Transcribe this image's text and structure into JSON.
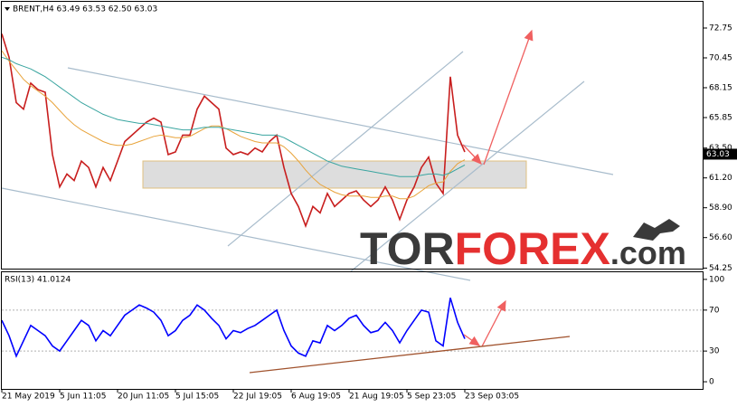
{
  "chart_data": [
    {
      "type": "line",
      "title": "BRENT,H4  63.49 63.53 62.50 63.03",
      "categories": [
        "21 May 2019",
        null,
        null,
        null,
        null,
        null,
        null,
        null,
        "5 Jun 11:05",
        null,
        null,
        null,
        null,
        null,
        null,
        null,
        "20 Jun 11:05",
        null,
        null,
        null,
        null,
        null,
        null,
        null,
        "5 Jul 15:05",
        null,
        null,
        null,
        null,
        null,
        null,
        null,
        "22 Jul 19:05",
        null,
        null,
        null,
        null,
        null,
        null,
        null,
        "6 Aug 19:05",
        null,
        null,
        null,
        null,
        null,
        null,
        null,
        "21 Aug 19:05",
        null,
        null,
        null,
        null,
        null,
        null,
        null,
        "5 Sep 23:05",
        null,
        null,
        null,
        null,
        null,
        null,
        null,
        "23 Sep 03:05"
      ],
      "series": [
        {
          "color": "#c81e1e",
          "values": [
            72.3,
            70.5,
            67,
            66.5,
            68.5,
            68,
            67.8,
            63,
            60.5,
            61.5,
            61,
            62.5,
            62,
            60.5,
            62,
            61,
            62.5,
            64,
            64.5,
            65,
            65.5,
            65.8,
            65.5,
            63,
            63.2,
            64.5,
            64.5,
            66.5,
            67.5,
            67,
            66.5,
            63.5,
            63,
            63.2,
            63,
            63.5,
            63.2,
            64,
            64.5,
            62,
            60,
            59,
            57.5,
            59,
            58.5,
            60,
            59,
            59.5,
            60,
            60.2,
            59.5,
            59,
            59.5,
            60.5,
            59.5,
            58,
            59.5,
            60.5,
            62,
            62.8,
            60.8,
            60,
            69,
            64.5,
            63.2
          ]
        },
        {
          "color": "#e8a33a",
          "values": [
            71.0,
            70.2,
            69.5,
            68.8,
            68.3,
            67.9,
            67.5,
            67.0,
            66.4,
            65.8,
            65.3,
            64.9,
            64.6,
            64.3,
            64.0,
            63.8,
            63.7,
            63.7,
            63.8,
            64.0,
            64.2,
            64.4,
            64.5,
            64.4,
            64.3,
            64.3,
            64.4,
            64.7,
            65.0,
            65.2,
            65.2,
            65.0,
            64.7,
            64.4,
            64.2,
            64.0,
            63.9,
            63.9,
            63.9,
            63.6,
            63.1,
            62.5,
            61.8,
            61.2,
            60.7,
            60.4,
            60.1,
            59.9,
            59.8,
            59.8,
            59.8,
            59.7,
            59.7,
            59.8,
            59.8,
            59.6,
            59.6,
            59.8,
            60.2,
            60.6,
            60.8,
            60.9,
            61.7,
            62.3,
            62.6
          ]
        },
        {
          "color": "#3aa5a0",
          "values": [
            70.5,
            70.3,
            70.0,
            69.8,
            69.6,
            69.3,
            69.0,
            68.6,
            68.2,
            67.8,
            67.4,
            67.0,
            66.7,
            66.4,
            66.1,
            65.9,
            65.7,
            65.6,
            65.5,
            65.4,
            65.4,
            65.3,
            65.2,
            65.1,
            65.0,
            64.9,
            64.9,
            65.0,
            65.1,
            65.1,
            65.1,
            65.0,
            64.9,
            64.8,
            64.7,
            64.6,
            64.5,
            64.5,
            64.5,
            64.3,
            64.0,
            63.7,
            63.4,
            63.1,
            62.8,
            62.5,
            62.3,
            62.1,
            62.0,
            61.9,
            61.8,
            61.7,
            61.6,
            61.5,
            61.4,
            61.3,
            61.3,
            61.3,
            61.4,
            61.5,
            61.5,
            61.4,
            61.6,
            61.9,
            62.2
          ]
        }
      ],
      "last_price": 63.03,
      "ylim": [
        54.14,
        74.77
      ],
      "yticks": [
        72.75,
        70.45,
        68.15,
        65.85,
        {
          "value": 63.5,
          "label": "63.50"
        },
        {
          "value": 61.2,
          "label": "61.20"
        },
        {
          "value": 58.9,
          "label": "58.90"
        },
        {
          "value": 56.6,
          "label": "56.60"
        },
        54.25
      ],
      "brand": [
        "TOR",
        "FOREX",
        ".com"
      ]
    },
    {
      "type": "line",
      "title": "RSI(13) 41.0124",
      "series": [
        {
          "color": "#0000ff",
          "values": [
            60,
            45,
            25,
            40,
            55,
            50,
            45,
            35,
            30,
            40,
            50,
            60,
            55,
            40,
            50,
            45,
            55,
            65,
            70,
            75,
            72,
            68,
            60,
            45,
            50,
            60,
            65,
            75,
            70,
            62,
            55,
            42,
            50,
            48,
            52,
            55,
            60,
            65,
            70,
            50,
            35,
            28,
            25,
            40,
            38,
            55,
            50,
            55,
            62,
            65,
            55,
            48,
            50,
            58,
            50,
            38,
            50,
            60,
            70,
            68,
            40,
            35,
            82,
            58,
            42
          ]
        }
      ],
      "ylim": [
        -7,
        107
      ],
      "yticks": [
        100,
        70,
        30,
        0
      ],
      "levels": [
        70,
        30
      ]
    }
  ]
}
